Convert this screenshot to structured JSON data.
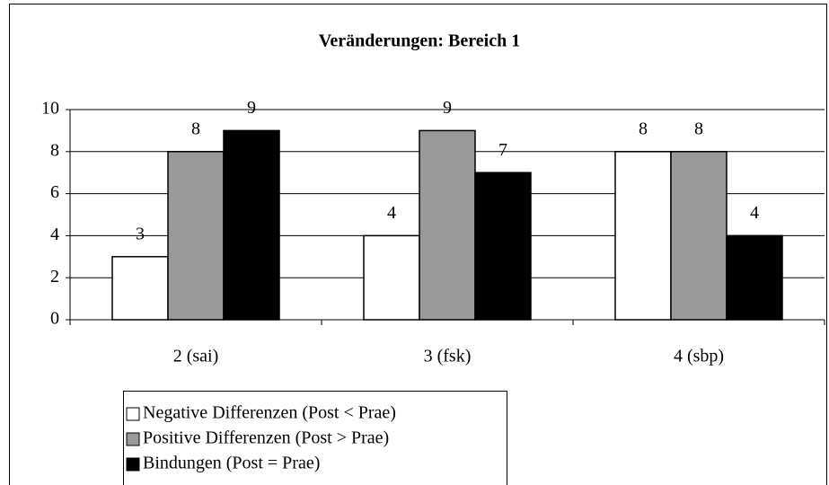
{
  "chart_data": {
    "type": "bar",
    "title": "Veränderungen: Bereich 1",
    "categories": [
      "2 (sai)",
      "3 (fsk)",
      "4 (sbp)"
    ],
    "series": [
      {
        "name": "Negative Differenzen (Post < Prae)",
        "color": "#ffffff",
        "values": [
          3,
          4,
          8
        ]
      },
      {
        "name": "Positive Differenzen (Post > Prae)",
        "color": "#999999",
        "values": [
          8,
          9,
          8
        ]
      },
      {
        "name": "Bindungen (Post = Prae)",
        "color": "#000000",
        "values": [
          9,
          7,
          4
        ]
      }
    ],
    "ylim": [
      0,
      10
    ],
    "yticks": [
      0,
      2,
      4,
      6,
      8,
      10
    ],
    "grid": true,
    "legend": "bottom-left"
  }
}
